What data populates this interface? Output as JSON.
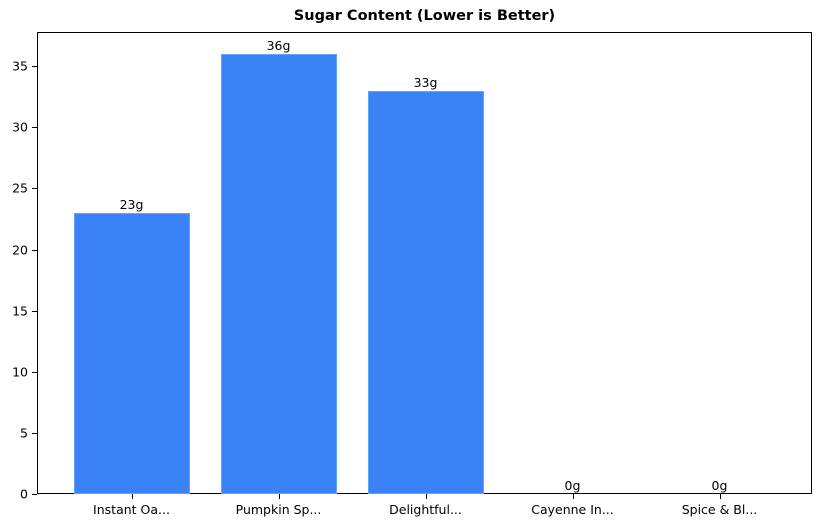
{
  "chart_data": {
    "type": "bar",
    "title": "Sugar Content (Lower is Better)",
    "xlabel": "",
    "ylabel": "",
    "categories": [
      "Instant Oa...",
      "Pumpkin Sp...",
      "Delightful...",
      "Cayenne In...",
      "Spice & Bl..."
    ],
    "values": [
      23,
      36,
      33,
      0,
      0
    ],
    "value_labels": [
      "23g",
      "36g",
      "33g",
      "0g",
      "0g"
    ],
    "ylim": [
      0,
      37.8
    ],
    "yticks": [
      0,
      5,
      10,
      15,
      20,
      25,
      30,
      35
    ],
    "grid": false,
    "legend": null,
    "bar_color": "#3b82f6",
    "bar_edge_color": "#60a5fa"
  }
}
